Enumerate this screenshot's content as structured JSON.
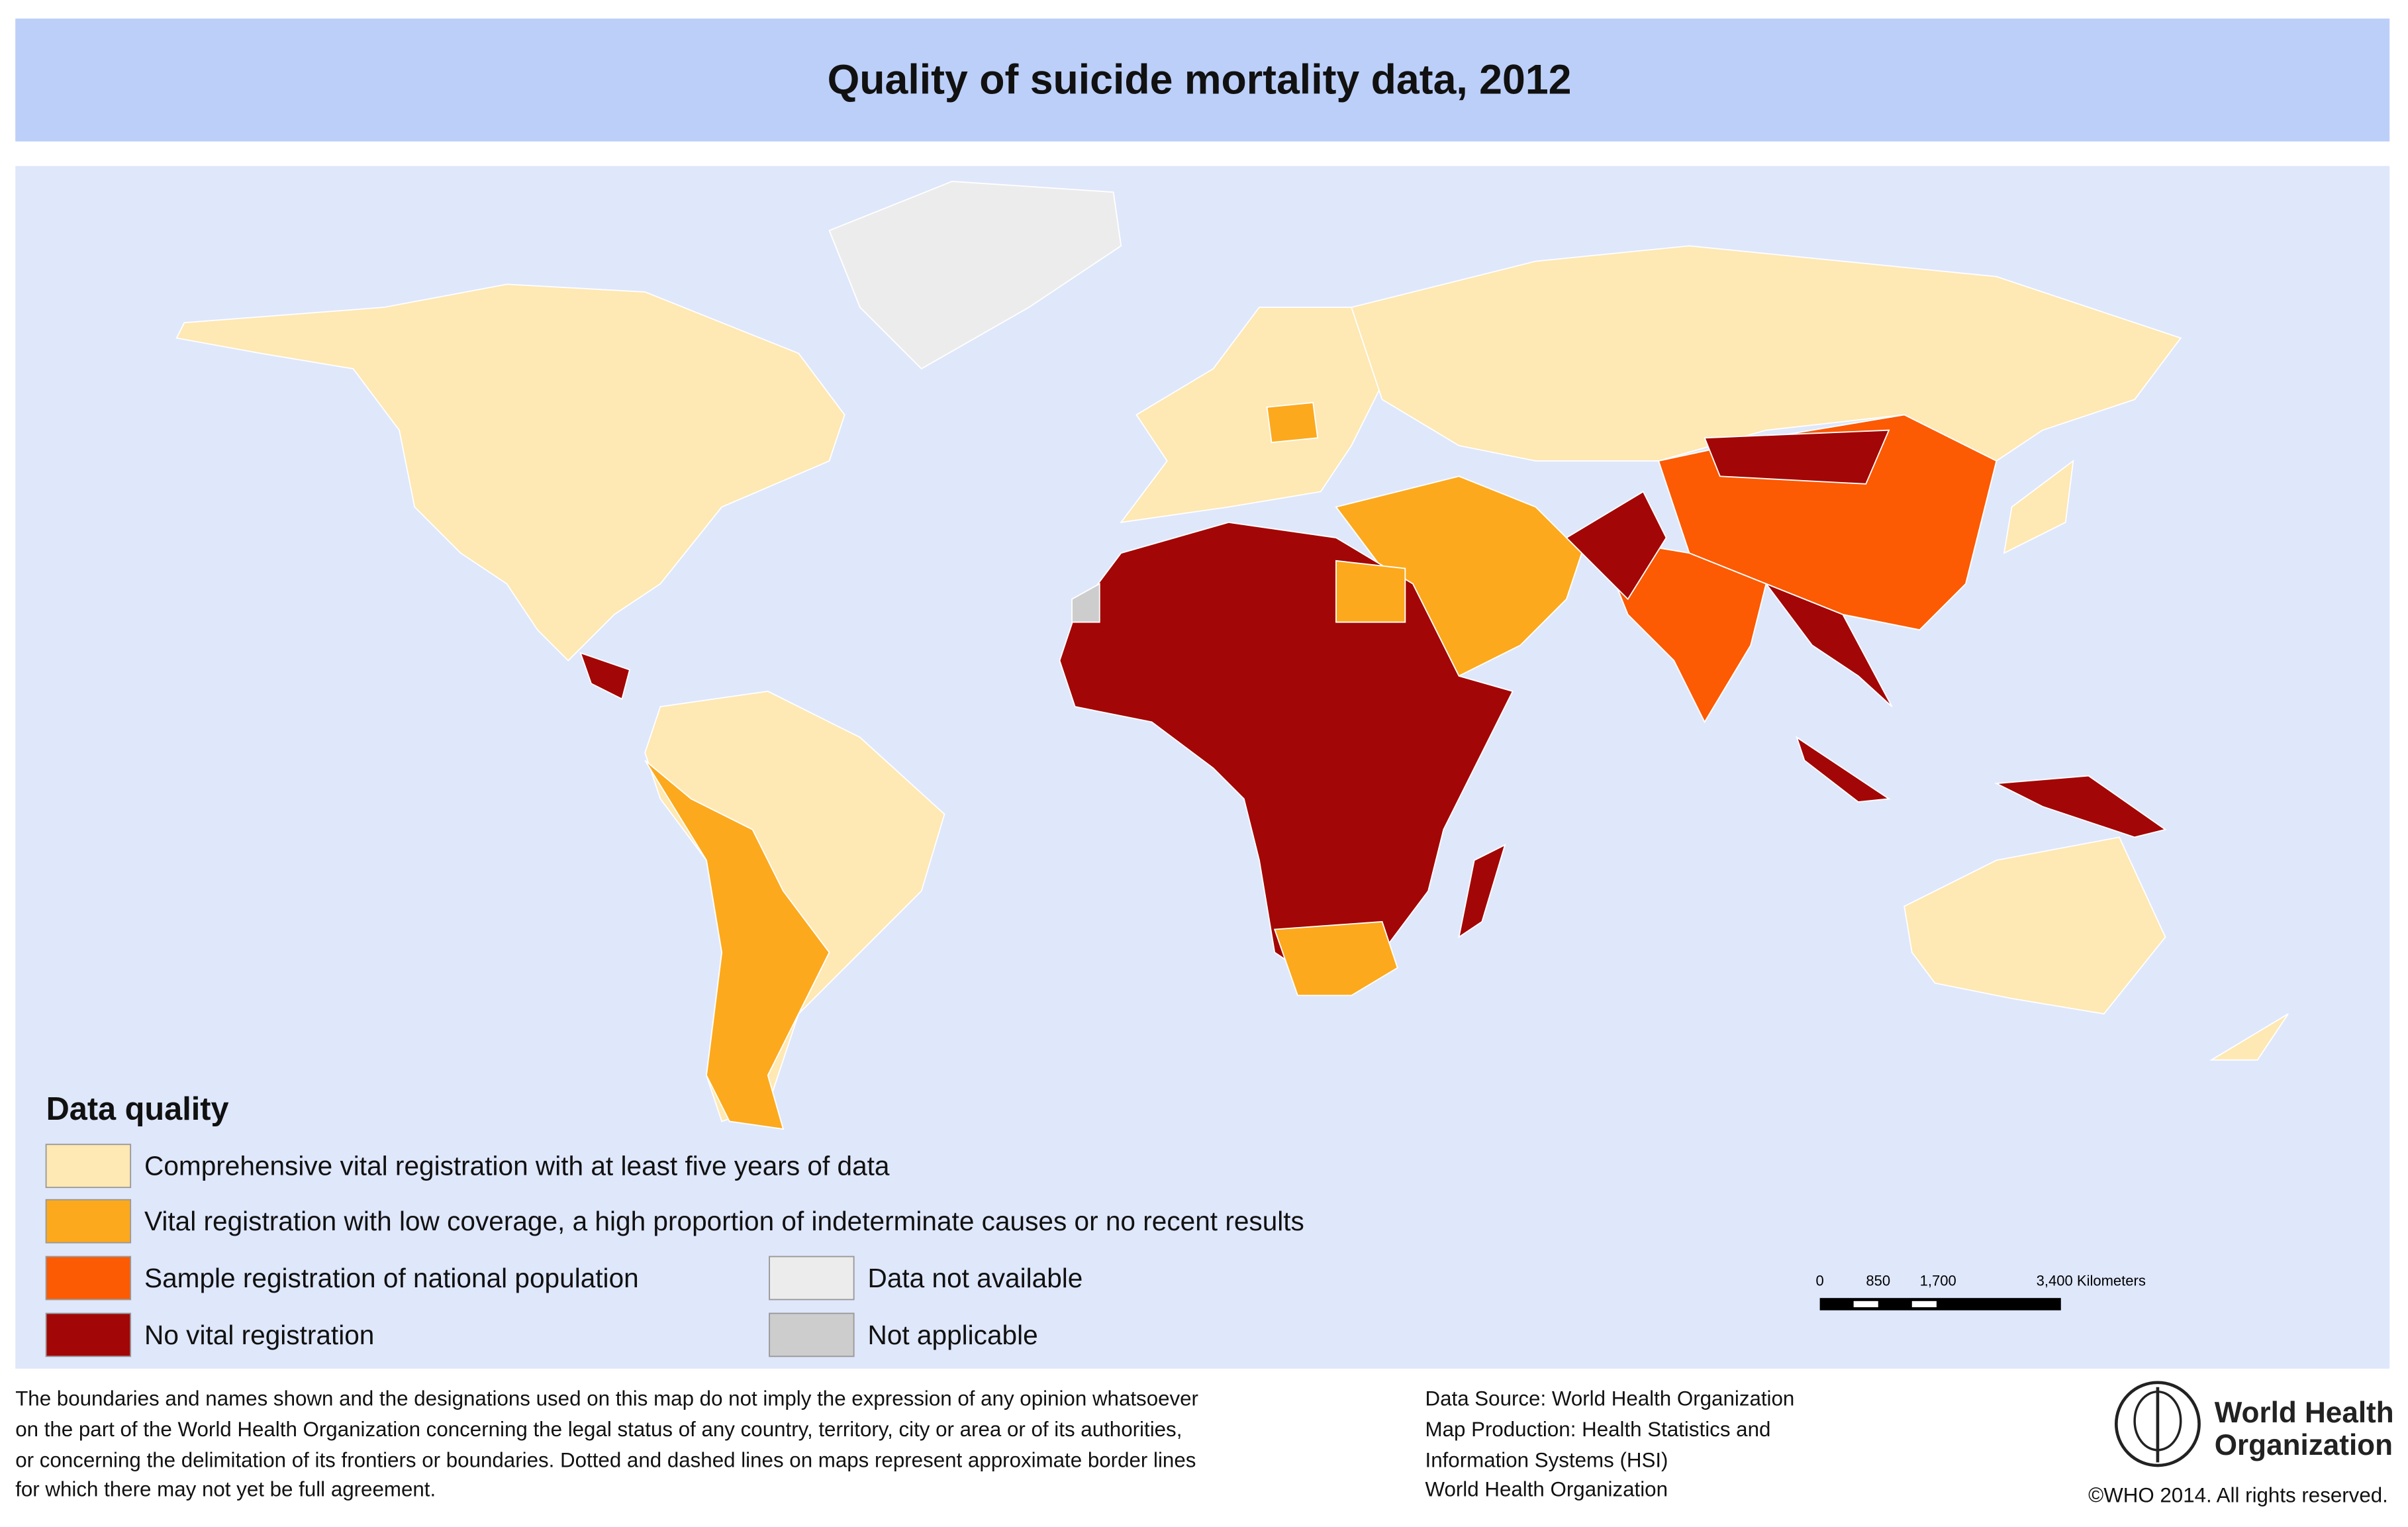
{
  "title": "Quality of suicide mortality data, 2012",
  "legend": {
    "title": "Data quality",
    "items": [
      {
        "label": "Comprehensive vital registration with at least five years of data",
        "color": "#fee8b3"
      },
      {
        "label": "Vital registration with low coverage, a high proportion of indeterminate causes or no recent results",
        "color": "#fca91d"
      },
      {
        "label": "Sample registration of national population",
        "color": "#fc5a03"
      },
      {
        "label": "No vital registration",
        "color": "#a30606"
      },
      {
        "label": "Data not available",
        "color": "#ececec"
      },
      {
        "label": "Not applicable",
        "color": "#cdcdcd"
      }
    ]
  },
  "scale_bar": {
    "labels": [
      "0",
      "850",
      "1,700",
      "3,400 Kilometers"
    ]
  },
  "disclaimer": [
    "The boundaries and names shown and the designations used on this map do not imply the expression of any opinion whatsoever",
    "on the part of the World Health Organization concerning the legal status of any country, territory, city or area or of its authorities,",
    "or concerning the delimitation of its frontiers or boundaries. Dotted and dashed lines on maps represent approximate border lines",
    "for which there may not yet be full agreement."
  ],
  "source": [
    "Data Source: World Health Organization",
    "Map Production: Health Statistics and",
    "Information Systems (HSI)",
    "World Health Organization"
  ],
  "logo": [
    "World Health",
    "Organization"
  ],
  "copyright": "©WHO 2014. All rights reserved."
}
